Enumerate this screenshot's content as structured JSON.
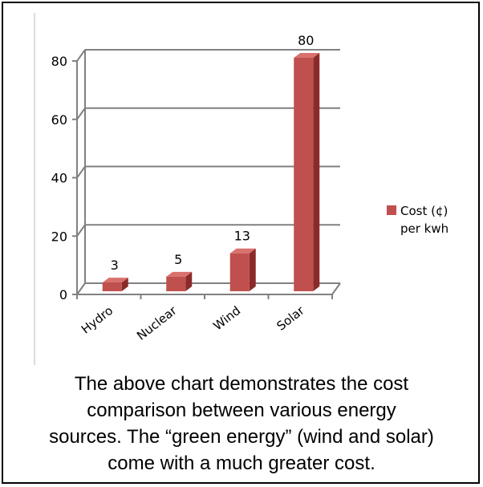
{
  "chart_data": {
    "type": "bar",
    "categories": [
      "Hydro",
      "Nuclear",
      "Wind",
      "Solar"
    ],
    "series": [
      {
        "name": "Cost (¢) per kwh",
        "values": [
          3,
          5,
          13,
          80
        ],
        "color": "#c0504d"
      }
    ],
    "ylim": [
      0,
      80
    ],
    "yticks": [
      0,
      20,
      40,
      60,
      80
    ],
    "grid": true,
    "legend_position": "right",
    "data_labels": true
  },
  "legend": {
    "line1": "Cost (¢)",
    "line2": "per kwh"
  },
  "caption": {
    "lines": [
      "The above chart demonstrates the cost",
      "comparison between various energy",
      "sources. The “green energy” (wind and solar)",
      "come with a much greater cost."
    ]
  }
}
